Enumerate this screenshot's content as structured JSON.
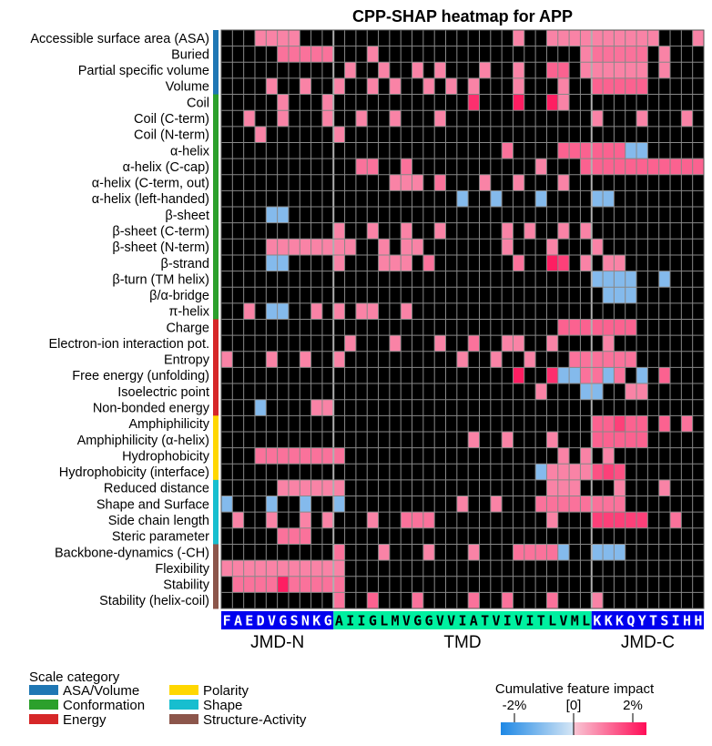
{
  "chart_data": {
    "type": "heatmap",
    "title": "CPP-SHAP heatmap for APP",
    "sequence": "FAEDVGSNKGAIIGLMVGGVVIATVIVITLVMLKKKQYTSIHH",
    "region_labels": [
      "JMD-N",
      "TMD",
      "JMD-C"
    ],
    "region_spans": [
      [
        0,
        9
      ],
      [
        10,
        32
      ],
      [
        33,
        42
      ]
    ],
    "region_colors": [
      "#0000ee",
      "#00f0a0",
      "#0000ee"
    ],
    "region_text_colors": [
      "#ffffff",
      "#000000",
      "#ffffff"
    ],
    "value_scale": "value v in [-1,1]; v>0 = positive impact (pink), v<0 = negative impact (blue), 0 = black (no feature)",
    "rows": [
      {
        "scale": "Accessible surface area (ASA)",
        "category": "ASA/Volume",
        "cells": {
          "3": 0.3,
          "4": 0.3,
          "5": 0.3,
          "6": 0.3,
          "26": 0.3,
          "29": 0.3,
          "30": 0.3,
          "31": 0.3,
          "32": 0.3,
          "33": 0.3,
          "34": 0.3,
          "35": 0.3,
          "36": 0.3,
          "37": 0.3,
          "38": 0.3,
          "42": 0.3
        }
      },
      {
        "scale": "Buried",
        "category": "ASA/Volume",
        "cells": {
          "5": 0.4,
          "6": 0.4,
          "7": 0.4,
          "8": 0.4,
          "9": 0.4,
          "13": 0.3,
          "32": 0.3,
          "33": 0.4,
          "34": 0.4,
          "35": 0.4,
          "36": 0.4,
          "37": 0.4,
          "39": 0.3
        }
      },
      {
        "scale": "Partial specific volume",
        "category": "ASA/Volume",
        "cells": {
          "11": 0.3,
          "14": 0.3,
          "17": 0.3,
          "19": 0.3,
          "23": 0.3,
          "26": 0.3,
          "29": 0.5,
          "30": 0.5,
          "32": 0.3,
          "33": 0.3,
          "34": 0.3,
          "35": 0.3,
          "36": 0.3,
          "37": 0.3,
          "39": 0.3
        }
      },
      {
        "scale": "Volume",
        "category": "ASA/Volume",
        "cells": {
          "4": 0.3,
          "7": 0.3,
          "10": 0.3,
          "13": 0.3,
          "15": 0.3,
          "18": 0.3,
          "20": 0.3,
          "22": 0.3,
          "26": 0.3,
          "30": 0.3,
          "33": 0.5,
          "34": 0.5,
          "35": 0.5,
          "36": 0.5,
          "37": 0.5
        }
      },
      {
        "scale": "Coil",
        "category": "Conformation",
        "cells": {
          "5": 0.3,
          "9": 0.3,
          "22": 0.8,
          "26": 0.9,
          "29": 0.9,
          "30": 0.3
        }
      },
      {
        "scale": "Coil (C-term)",
        "category": "Conformation",
        "cells": {
          "2": 0.3,
          "5": 0.3,
          "9": 0.3,
          "12": 0.3,
          "15": 0.3,
          "19": 0.3,
          "33": 0.3,
          "37": 0.3,
          "41": 0.3
        }
      },
      {
        "scale": "Coil (N-term)",
        "category": "Conformation",
        "cells": {
          "3": 0.3,
          "10": 0.3
        }
      },
      {
        "scale": "α-helix",
        "category": "Conformation",
        "cells": {
          "25": 0.4,
          "30": 0.5,
          "31": 0.5,
          "32": 0.5,
          "33": 0.5,
          "34": 0.5,
          "35": 0.5,
          "36": -0.4,
          "37": -0.4
        }
      },
      {
        "scale": "α-helix (C-cap)",
        "category": "Conformation",
        "cells": {
          "12": 0.4,
          "13": 0.4,
          "16": 0.4,
          "28": 0.3,
          "32": 0.5,
          "33": 0.5,
          "34": 0.5,
          "35": 0.5,
          "36": 0.5,
          "37": 0.5,
          "38": 0.5,
          "39": 0.5,
          "40": 0.5,
          "41": 0.5,
          "42": 0.5
        }
      },
      {
        "scale": "α-helix (C-term, out)",
        "category": "Conformation",
        "cells": {
          "15": 0.3,
          "16": 0.3,
          "17": 0.3,
          "19": 0.4,
          "23": 0.3,
          "26": 0.3,
          "30": 0.3
        }
      },
      {
        "scale": "α-helix (left-handed)",
        "category": "Conformation",
        "cells": {
          "21": -0.4,
          "24": -0.4,
          "28": -0.4,
          "33": -0.4,
          "34": -0.4
        }
      },
      {
        "scale": "β-sheet",
        "category": "Conformation",
        "cells": {
          "4": -0.4,
          "5": -0.4
        }
      },
      {
        "scale": "β-sheet (C-term)",
        "category": "Conformation",
        "cells": {
          "10": 0.3,
          "13": 0.3,
          "16": 0.3,
          "19": 0.3,
          "25": 0.3,
          "27": 0.3,
          "30": 0.3,
          "32": 0.3
        }
      },
      {
        "scale": "β-sheet (N-term)",
        "category": "Conformation",
        "cells": {
          "4": 0.3,
          "5": 0.3,
          "6": 0.3,
          "7": 0.3,
          "8": 0.3,
          "9": 0.3,
          "10": 0.3,
          "11": 0.3,
          "14": 0.3,
          "16": 0.3,
          "17": 0.3,
          "25": 0.3,
          "29": 0.3,
          "33": 0.3
        }
      },
      {
        "scale": "β-strand",
        "category": "Conformation",
        "cells": {
          "4": -0.4,
          "5": -0.4,
          "10": 0.3,
          "14": 0.3,
          "15": 0.3,
          "16": 0.3,
          "18": 0.4,
          "26": 0.4,
          "29": 0.9,
          "30": 0.7,
          "32": 0.3,
          "34": 0.3,
          "35": 0.3
        }
      },
      {
        "scale": "β-turn (TM helix)",
        "category": "Conformation",
        "cells": {
          "33": -0.4,
          "34": -0.4,
          "35": -0.4,
          "36": -0.4,
          "39": -0.4
        }
      },
      {
        "scale": "β/α-bridge",
        "category": "Conformation",
        "cells": {
          "34": -0.4,
          "35": -0.4,
          "36": -0.4
        }
      },
      {
        "scale": "π-helix",
        "category": "Conformation",
        "cells": {
          "2": 0.3,
          "4": -0.4,
          "5": -0.4,
          "8": 0.3,
          "10": 0.3,
          "12": 0.3,
          "13": 0.3,
          "16": 0.3
        }
      },
      {
        "scale": "Charge",
        "category": "Energy",
        "cells": {
          "30": 0.5,
          "31": 0.5,
          "32": 0.5,
          "33": 0.5,
          "34": 0.5,
          "35": 0.5,
          "36": 0.5
        }
      },
      {
        "scale": "Electron-ion interaction pot.",
        "category": "Energy",
        "cells": {
          "11": 0.3,
          "15": 0.3,
          "19": 0.3,
          "22": 0.4,
          "25": 0.3,
          "26": 0.3,
          "29": 0.3,
          "34": 0.3
        }
      },
      {
        "scale": "Entropy",
        "category": "Energy",
        "cells": {
          "0": 0.3,
          "4": 0.3,
          "7": 0.3,
          "10": 0.3,
          "21": 0.3,
          "24": 0.3,
          "27": 0.3,
          "31": 0.4,
          "32": 0.4,
          "33": 0.4,
          "34": 0.4,
          "35": 0.4,
          "36": 0.4
        }
      },
      {
        "scale": "Free energy (unfolding)",
        "category": "Energy",
        "cells": {
          "26": 0.9,
          "29": 0.8,
          "30": -0.4,
          "31": -0.4,
          "32": 0.4,
          "33": 0.4,
          "34": -0.4,
          "35": 0.4,
          "37": -0.4,
          "39": 0.5
        }
      },
      {
        "scale": "Isoelectric point",
        "category": "Energy",
        "cells": {
          "28": 0.3,
          "32": -0.4,
          "33": -0.4,
          "36": 0.3,
          "37": 0.3
        }
      },
      {
        "scale": "Non-bonded energy",
        "category": "Energy",
        "cells": {
          "3": -0.4,
          "8": 0.3,
          "9": 0.3
        }
      },
      {
        "scale": "Amphiphilicity",
        "category": "Polarity",
        "cells": {
          "33": 0.5,
          "34": 0.5,
          "35": 0.7,
          "36": 0.5,
          "37": 0.5,
          "39": 0.5,
          "41": 0.4
        }
      },
      {
        "scale": "Amphiphilicity (α-helix)",
        "category": "Polarity",
        "cells": {
          "22": 0.3,
          "25": 0.3,
          "29": 0.3,
          "33": 0.5,
          "34": 0.5,
          "35": 0.5,
          "36": 0.5,
          "37": 0.5
        }
      },
      {
        "scale": "Hydrophobicity",
        "category": "Polarity",
        "cells": {
          "3": 0.4,
          "4": 0.4,
          "5": 0.4,
          "6": 0.4,
          "7": 0.4,
          "8": 0.4,
          "9": 0.4,
          "10": 0.4,
          "30": 0.3,
          "32": 0.3,
          "34": 0.3
        }
      },
      {
        "scale": "Hydrophobicity (interface)",
        "category": "Polarity",
        "cells": {
          "28": -0.4,
          "29": 0.3,
          "30": 0.3,
          "31": 0.3,
          "32": 0.3,
          "33": 0.6,
          "34": 0.7,
          "35": 0.6
        }
      },
      {
        "scale": "Reduced distance",
        "category": "Shape",
        "cells": {
          "5": 0.3,
          "6": 0.3,
          "7": 0.3,
          "8": 0.3,
          "9": 0.3,
          "10": 0.3,
          "29": 0.3,
          "30": 0.3,
          "31": 0.3,
          "35": 0.3,
          "39": 0.3
        }
      },
      {
        "scale": "Shape and Surface",
        "category": "Shape",
        "cells": {
          "0": -0.4,
          "4": -0.4,
          "7": -0.4,
          "10": -0.4,
          "21": 0.3,
          "24": 0.3,
          "28": 0.4,
          "29": 0.4,
          "30": 0.4,
          "31": 0.4,
          "32": 0.4,
          "33": 0.4,
          "34": 0.4,
          "35": 0.4
        }
      },
      {
        "scale": "Side chain length",
        "category": "Shape",
        "cells": {
          "1": 0.3,
          "4": 0.3,
          "7": 0.3,
          "9": 0.3,
          "13": 0.3,
          "16": 0.4,
          "17": 0.4,
          "18": 0.4,
          "29": 0.3,
          "33": 0.7,
          "34": 0.7,
          "35": 0.7,
          "36": 0.7,
          "37": 0.7,
          "40": 0.4
        }
      },
      {
        "scale": "Steric parameter",
        "category": "Shape",
        "cells": {
          "5": 0.4,
          "6": 0.4,
          "7": 0.4
        }
      },
      {
        "scale": "Backbone-dynamics (-CH)",
        "category": "Structure-Activity",
        "cells": {
          "10": 0.4,
          "14": 0.3,
          "18": 0.3,
          "22": 0.3,
          "26": 0.4,
          "27": 0.4,
          "28": 0.4,
          "29": 0.4,
          "30": -0.4,
          "33": -0.4,
          "34": -0.4,
          "35": -0.4
        }
      },
      {
        "scale": "Flexibility",
        "category": "Structure-Activity",
        "cells": {
          "0": 0.3,
          "1": 0.3,
          "2": 0.3,
          "3": 0.3,
          "4": 0.3,
          "5": 0.3,
          "6": 0.3,
          "7": 0.3,
          "8": 0.3,
          "9": 0.3,
          "10": 0.3
        }
      },
      {
        "scale": "Stability",
        "category": "Structure-Activity",
        "cells": {
          "1": 0.4,
          "2": 0.4,
          "3": 0.4,
          "4": 0.4,
          "5": 0.9,
          "6": 0.4,
          "7": 0.4,
          "8": 0.4,
          "9": 0.4,
          "10": 0.4
        }
      },
      {
        "scale": "Stability (helix-coil)",
        "category": "Structure-Activity",
        "cells": {
          "10": 0.4,
          "13": 0.5,
          "17": 0.4,
          "22": 0.4,
          "25": 0.4,
          "29": 0.4,
          "33": 0.3
        }
      }
    ],
    "categories": [
      {
        "name": "ASA/Volume",
        "color": "#1f77b4"
      },
      {
        "name": "Conformation",
        "color": "#2ca02c"
      },
      {
        "name": "Energy",
        "color": "#d62728"
      },
      {
        "name": "Polarity",
        "color": "#ffd700"
      },
      {
        "name": "Shape",
        "color": "#17becf"
      },
      {
        "name": "Structure-Activity",
        "color": "#8c564b"
      }
    ],
    "legend": {
      "title": "Scale category",
      "placement": "bottom-left"
    },
    "colorbar": {
      "title": "Cumulative feature impact",
      "tick_labels": [
        "-2%",
        "[0]",
        "2%"
      ],
      "range": [
        -2,
        2
      ],
      "placement": "bottom-right",
      "colors": {
        "negative": "#1e88e5",
        "mid_negative": "#c8dcf0",
        "mid_positive": "#f7b6c8",
        "positive": "#ff0d57"
      }
    },
    "colors": {
      "empty_cell": "#000000",
      "grid": "#888888"
    }
  }
}
